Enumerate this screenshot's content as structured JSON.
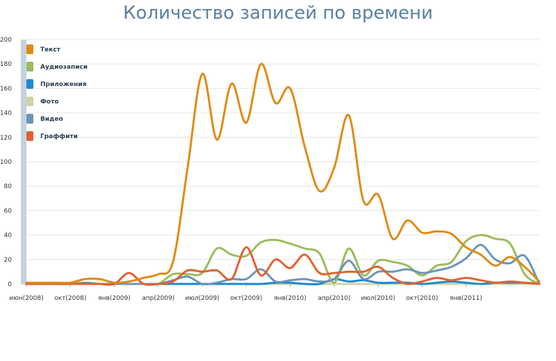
{
  "chart_data": {
    "type": "line",
    "title": "Количество записей по времени",
    "xlabel": "",
    "ylabel": "",
    "ylim": [
      0,
      200
    ],
    "yticks": [
      0,
      20,
      40,
      60,
      80,
      100,
      120,
      140,
      160,
      180,
      200
    ],
    "grid": true,
    "legend_position": "top-left",
    "x_tick_labels": [
      "июн(2008)",
      "окт(2008)",
      "янв(2009)",
      "апр(2009)",
      "июл(2009)",
      "окт(2009)",
      "янв(2010)",
      "апр(2010)",
      "июл(2010)",
      "окт(2010)",
      "янв(2011)"
    ],
    "series": [
      {
        "name": "Текст",
        "color": "#e08a14",
        "values": [
          1,
          1,
          1,
          1,
          4,
          4,
          1,
          2,
          5,
          8,
          18,
          95,
          172,
          118,
          164,
          132,
          180,
          148,
          160,
          112,
          76,
          95,
          138,
          68,
          73,
          37,
          52,
          42,
          43,
          41,
          30,
          24,
          15,
          22,
          14,
          2
        ]
      },
      {
        "name": "Аудиозаписи",
        "color": "#9cbc59",
        "values": [
          0,
          0,
          0,
          0,
          0,
          0,
          0,
          0,
          0,
          0,
          8,
          8,
          9,
          29,
          24,
          23,
          34,
          36,
          33,
          29,
          25,
          1,
          29,
          7,
          19,
          18,
          15,
          7,
          15,
          18,
          35,
          40,
          37,
          33,
          8,
          0
        ]
      },
      {
        "name": "Приложения",
        "color": "#1b8ad3",
        "values": [
          0,
          0,
          0,
          0,
          0,
          0,
          0,
          0,
          0,
          0,
          0,
          0,
          0,
          0,
          0,
          0,
          0,
          1,
          1,
          0,
          0,
          4,
          2,
          3,
          1,
          1,
          1,
          0,
          1,
          2,
          1,
          0,
          1,
          1,
          1,
          0
        ]
      },
      {
        "name": "Фото",
        "color": "#d3d1a4",
        "values": [
          0,
          0,
          0,
          0,
          0,
          0,
          0,
          0,
          0,
          0,
          0,
          0,
          0,
          0,
          0,
          0,
          0,
          0,
          0,
          0,
          0,
          0,
          0,
          0,
          0,
          0,
          0,
          0,
          0,
          0,
          0,
          0,
          0,
          0,
          0,
          0
        ]
      },
      {
        "name": "Видео",
        "color": "#6b95b5",
        "values": [
          0,
          0,
          0,
          0,
          1,
          0,
          0,
          0,
          0,
          0,
          3,
          6,
          0,
          1,
          4,
          4,
          12,
          2,
          3,
          4,
          2,
          4,
          19,
          4,
          10,
          10,
          12,
          9,
          11,
          14,
          21,
          32,
          20,
          17,
          23,
          0
        ]
      },
      {
        "name": "Граффити",
        "color": "#e2612f",
        "values": [
          0,
          0,
          0,
          0,
          0,
          0,
          0,
          9,
          0,
          0,
          2,
          11,
          10,
          11,
          4,
          30,
          7,
          20,
          13,
          24,
          9,
          9,
          10,
          10,
          14,
          5,
          0,
          2,
          5,
          3,
          5,
          3,
          1,
          2,
          1,
          0
        ]
      }
    ]
  }
}
